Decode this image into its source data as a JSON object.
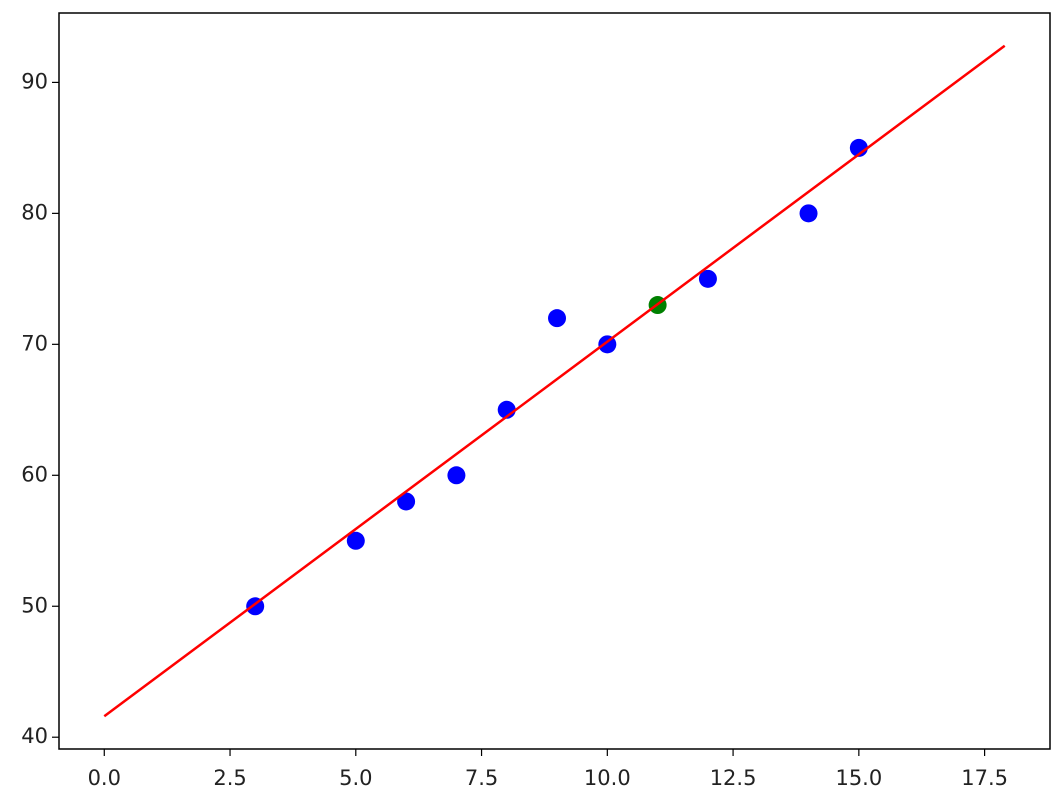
{
  "chart_data": {
    "type": "scatter",
    "xlim": [
      -0.9,
      18.8
    ],
    "ylim": [
      39.1,
      95.3
    ],
    "xticks": [
      {
        "value": 0,
        "label": "0.0"
      },
      2.5,
      {
        "value": 5,
        "label": "5.0"
      },
      7.5,
      {
        "value": 10,
        "label": "10.0"
      },
      12.5,
      {
        "value": 15,
        "label": "15.0"
      },
      17.5
    ],
    "yticks": [
      40,
      50,
      60,
      70,
      80,
      90
    ],
    "series": [
      {
        "type": "scatter",
        "color": "#0000ff",
        "x": [
          3,
          5,
          6,
          7,
          8,
          9,
          10,
          12,
          14,
          15
        ],
        "values": [
          50,
          55,
          58,
          60,
          65,
          72,
          70,
          75,
          80,
          85
        ]
      },
      {
        "type": "scatter",
        "color": "#008000",
        "x": [
          11
        ],
        "values": [
          73
        ]
      },
      {
        "type": "line",
        "color": "#ff0000",
        "x": [
          0,
          17.9
        ],
        "values": [
          41.6,
          92.8
        ]
      }
    ]
  }
}
